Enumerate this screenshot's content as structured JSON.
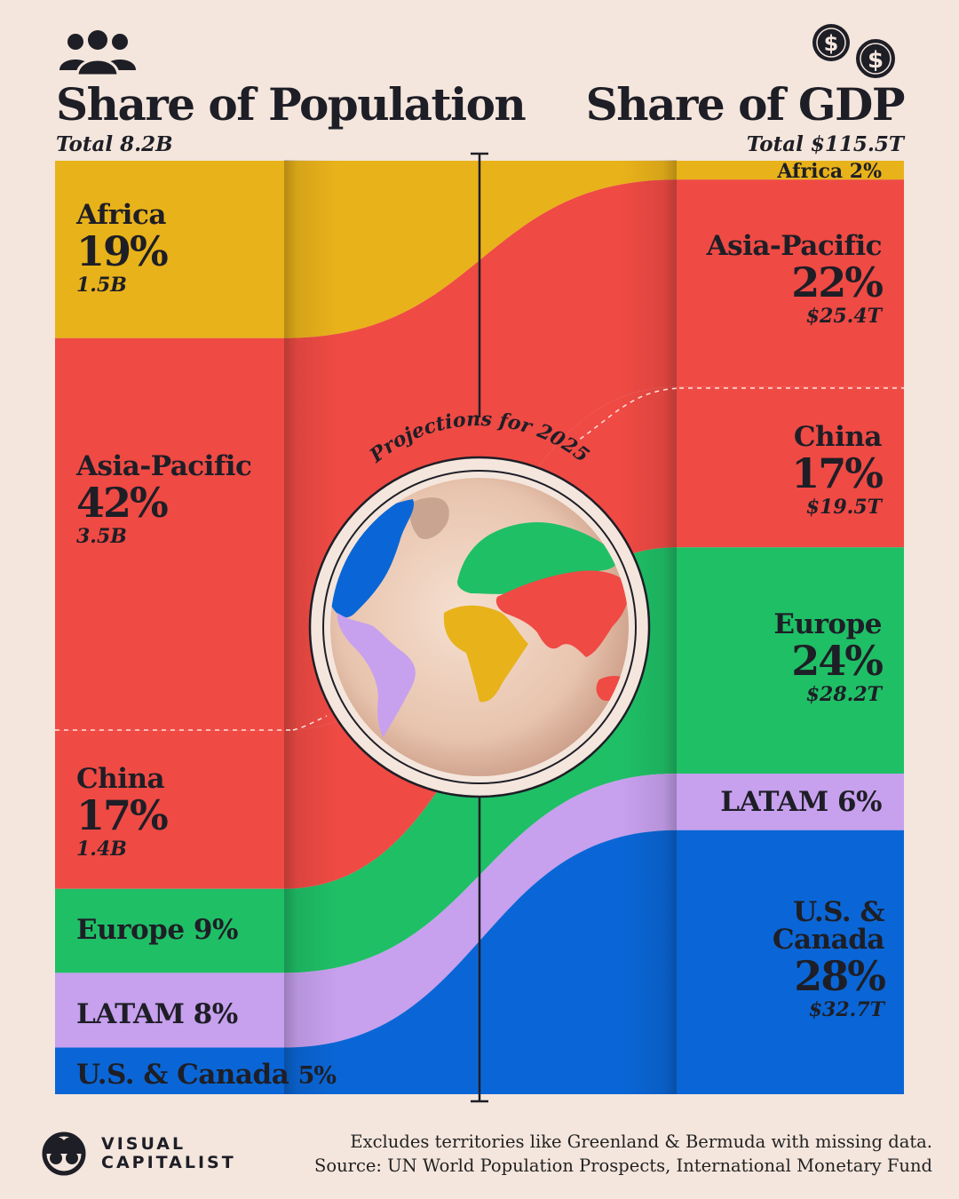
{
  "header": {
    "left_title": "Share of Population",
    "left_subtitle": "Total 8.2B",
    "right_title": "Share of GDP",
    "right_subtitle": "Total $115.5T",
    "people_icon": "people-group-icon",
    "coins_icon": "dollar-coins-icon"
  },
  "center_label": "Projections for 2025",
  "chart_data": {
    "type": "sankey",
    "left_title": "Share of Population",
    "left_total": "Total 8.2B",
    "right_title": "Share of GDP",
    "right_total": "Total $115.5T",
    "regions": [
      {
        "name": "Africa",
        "population_pct": 19,
        "population": "1.5B",
        "gdp_pct": 2,
        "gdp": "",
        "color": "#E8B21A"
      },
      {
        "name": "Asia-Pacific",
        "population_pct": 42,
        "population": "3.5B",
        "gdp_pct": 22,
        "gdp": "$25.4T",
        "color": "#EF4A44"
      },
      {
        "name": "China",
        "population_pct": 17,
        "population": "1.4B",
        "gdp_pct": 17,
        "gdp": "$19.5T",
        "color": "#EF4A44"
      },
      {
        "name": "Europe",
        "population_pct": 9,
        "population": "",
        "gdp_pct": 24,
        "gdp": "$28.2T",
        "color": "#1FBF66"
      },
      {
        "name": "LATAM",
        "population_pct": 8,
        "population": "",
        "gdp_pct": 6,
        "gdp": "",
        "color": "#C7A0EE"
      },
      {
        "name": "U.S. & Canada",
        "population_pct": 5,
        "population": "",
        "gdp_pct": 28,
        "gdp": "$32.7T",
        "color": "#0A66D6"
      }
    ]
  },
  "left_labels": {
    "africa": {
      "name": "Africa",
      "pct": "19%",
      "value": "1.5B"
    },
    "asia": {
      "name": "Asia-Pacific",
      "pct": "42%",
      "value": "3.5B"
    },
    "china": {
      "name": "China",
      "pct": "17%",
      "value": "1.4B"
    },
    "europe": "Europe 9%",
    "latam": "LATAM 8%",
    "us_name": "U.S. & Canada",
    "us_pct": "5%"
  },
  "right_labels": {
    "africa": "Africa 2%",
    "asia": {
      "name": "Asia-Pacific",
      "pct": "22%",
      "value": "$25.4T"
    },
    "china": {
      "name": "China",
      "pct": "17%",
      "value": "$19.5T"
    },
    "europe": {
      "name": "Europe",
      "pct": "24%",
      "value": "$28.2T"
    },
    "latam": "LATAM 6%",
    "us": {
      "name_line1": "U.S. &",
      "name_line2": "Canada",
      "pct": "28%",
      "value": "$32.7T"
    }
  },
  "footer": {
    "note": "Excludes territories like Greenland & Bermuda with missing data.",
    "source": "Source: UN World Population Prospects, International Monetary Fund",
    "brand_line1": "VISUAL",
    "brand_line2": "CAPITALIST"
  },
  "colors": {
    "background": "#F4E6DD",
    "africa": "#E8B21A",
    "asia": "#EF4A44",
    "europe": "#1FBF66",
    "latam": "#C7A0EE",
    "us_canada": "#0A66D6",
    "text": "#1E1E26"
  }
}
